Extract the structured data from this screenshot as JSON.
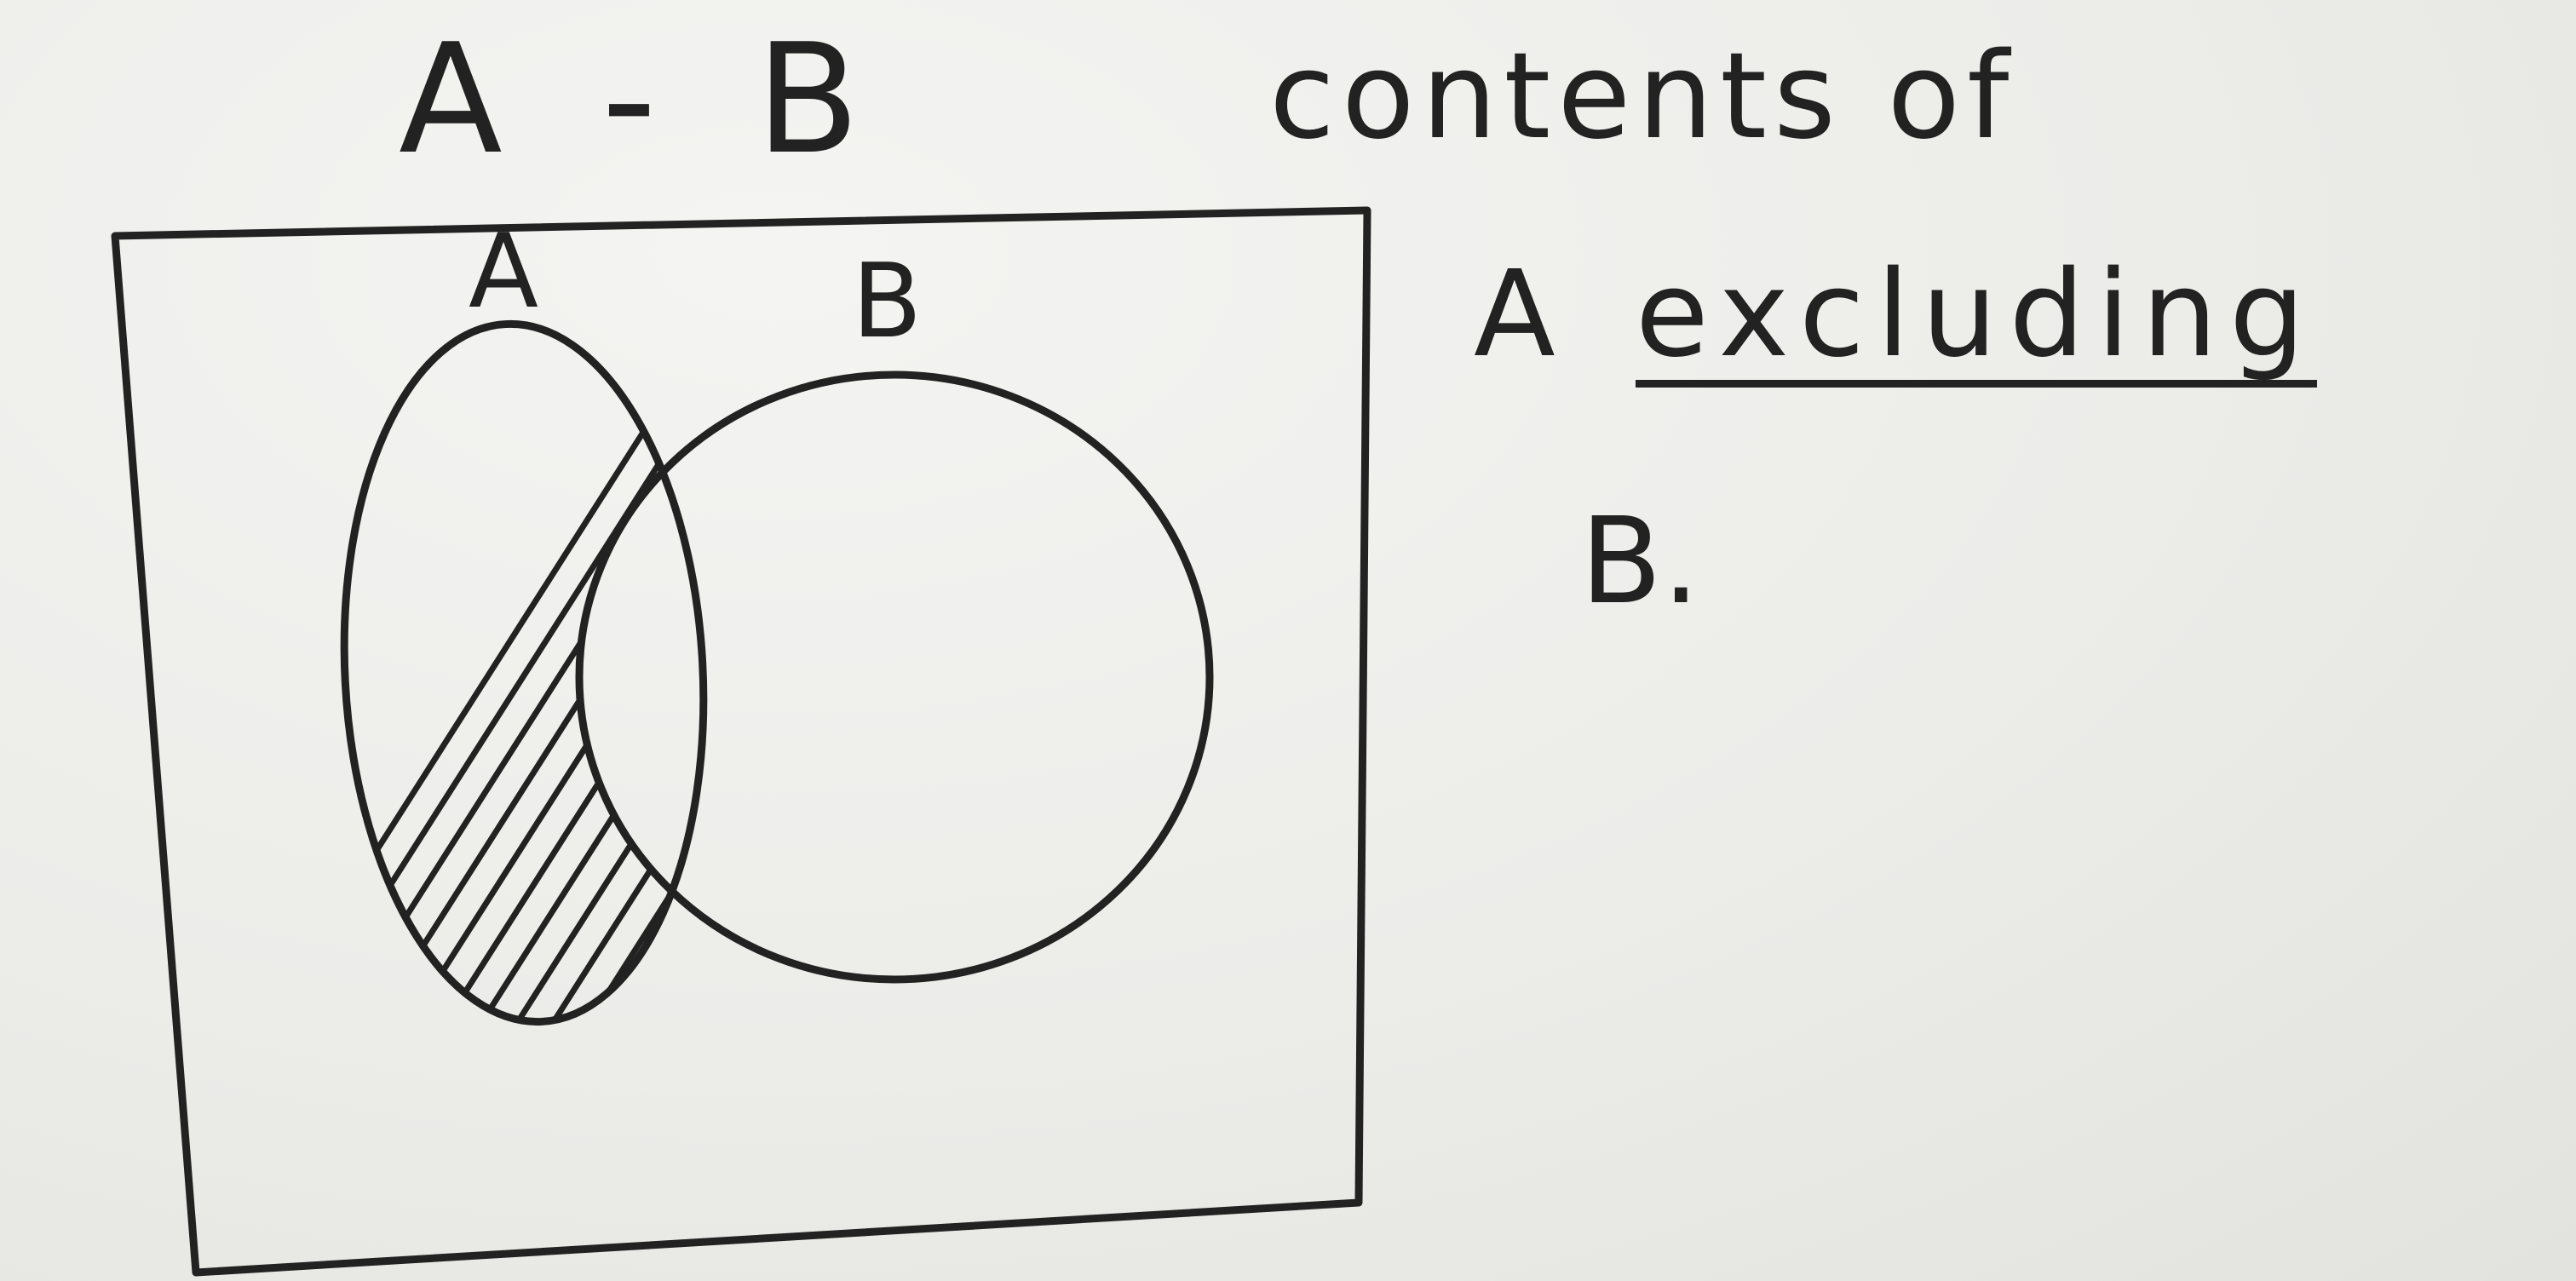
{
  "title": {
    "expression": "A - B",
    "description": "contents of"
  },
  "description": {
    "line2_prefix": "A",
    "line2_emphasis": "excluding",
    "line3": "B."
  },
  "venn": {
    "set_a_label": "A",
    "set_b_label": "B",
    "shaded_region": "A - B",
    "ink_color": "#222222",
    "paper_color": "#ecece9"
  }
}
